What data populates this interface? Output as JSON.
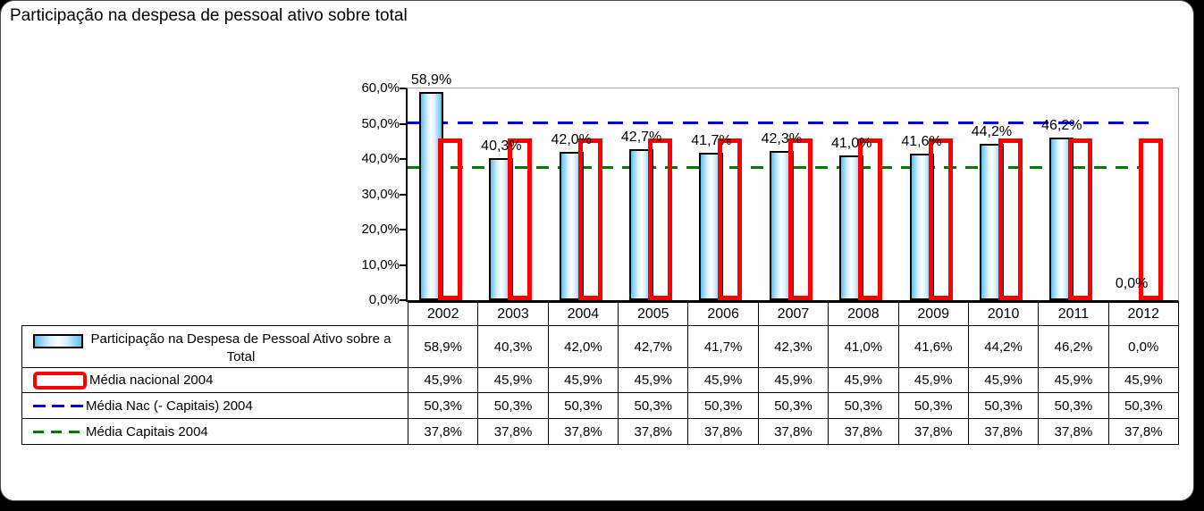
{
  "title": "Participação na despesa de pessoal ativo sobre total",
  "colors": {
    "bar_gradient_edge": "#5fc1f0",
    "bar_gradient_center": "#ffffff",
    "bar_border": "#000000",
    "media_nacional_red": "#ff0000",
    "media_nac_capitais_blue": "#0000ee",
    "media_capitais_green": "#007a00",
    "plot_border_gray": "#a6a6a6",
    "axis_black": "#000000"
  },
  "chart_data": {
    "type": "bar",
    "title": "Participação na despesa de pessoal ativo sobre total",
    "categories": [
      "2002",
      "2003",
      "2004",
      "2005",
      "2006",
      "2007",
      "2008",
      "2009",
      "2010",
      "2011",
      "2012"
    ],
    "ylim": [
      0,
      60
    ],
    "yticks": [
      "0,0%",
      "10,0%",
      "20,0%",
      "30,0%",
      "40,0%",
      "50,0%",
      "60,0%"
    ],
    "grid": false,
    "legend_position": "table-left",
    "series": [
      {
        "name": "Participação na Despesa de Pessoal Ativo sobre a Total",
        "type": "bar",
        "color": "#5fc1f0",
        "values": [
          58.9,
          40.3,
          42.0,
          42.7,
          41.7,
          42.3,
          41.0,
          41.6,
          44.2,
          46.2,
          0.0
        ],
        "labels": [
          "58,9%",
          "40,3%",
          "42,0%",
          "42,7%",
          "41,7%",
          "42,3%",
          "41,0%",
          "41,6%",
          "44,2%",
          "46,2%",
          "0,0%"
        ]
      },
      {
        "name": "Média nacional 2004",
        "type": "bar-outline",
        "color": "#ff0000",
        "values": [
          45.9,
          45.9,
          45.9,
          45.9,
          45.9,
          45.9,
          45.9,
          45.9,
          45.9,
          45.9,
          45.9
        ],
        "labels": [
          "45,9%",
          "45,9%",
          "45,9%",
          "45,9%",
          "45,9%",
          "45,9%",
          "45,9%",
          "45,9%",
          "45,9%",
          "45,9%",
          "45,9%"
        ]
      },
      {
        "name": "Média Nac (- Capitais) 2004",
        "type": "dashed-line",
        "color": "#0000ee",
        "values": [
          50.3,
          50.3,
          50.3,
          50.3,
          50.3,
          50.3,
          50.3,
          50.3,
          50.3,
          50.3,
          50.3
        ],
        "labels": [
          "50,3%",
          "50,3%",
          "50,3%",
          "50,3%",
          "50,3%",
          "50,3%",
          "50,3%",
          "50,3%",
          "50,3%",
          "50,3%",
          "50,3%"
        ]
      },
      {
        "name": "Média Capitais 2004",
        "type": "dashed-line",
        "color": "#007a00",
        "values": [
          37.8,
          37.8,
          37.8,
          37.8,
          37.8,
          37.8,
          37.8,
          37.8,
          37.8,
          37.8,
          37.8
        ],
        "labels": [
          "37,8%",
          "37,8%",
          "37,8%",
          "37,8%",
          "37,8%",
          "37,8%",
          "37,8%",
          "37,8%",
          "37,8%",
          "37,8%",
          "37,8%"
        ]
      }
    ]
  }
}
